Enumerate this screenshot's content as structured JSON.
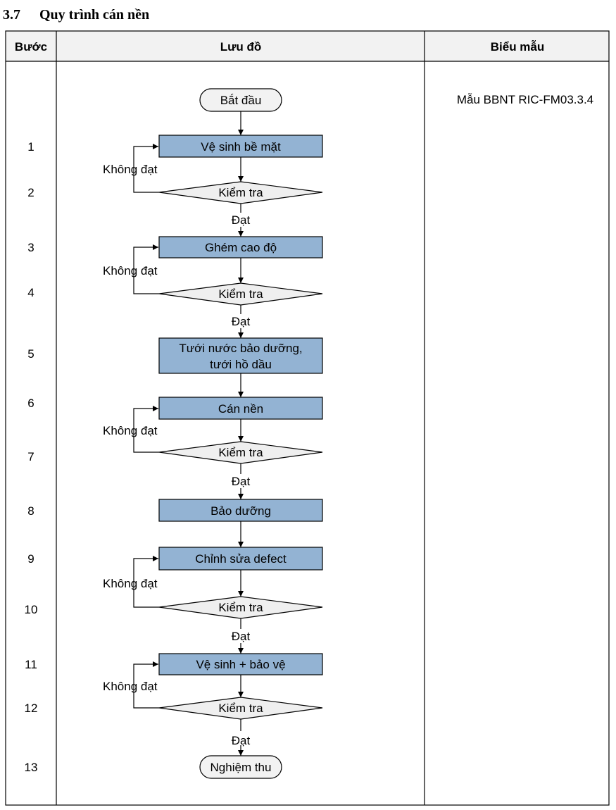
{
  "section": {
    "number": "3.7",
    "title": "Quy trình cán nền"
  },
  "table": {
    "headers": {
      "step": "Bước",
      "flow": "Lưu đồ",
      "form": "Biểu mẫu"
    },
    "form_entry": "Mẫu BBNT RIC-FM03.3.4"
  },
  "flowchart": {
    "start": "Bắt đầu",
    "end": "Nghiệm thu",
    "pass_label": "Đạt",
    "fail_label": "Không đạt",
    "colors": {
      "process_fill": "#93b3d3",
      "decision_fill": "#efefef",
      "terminal_fill": "#f2f2f2",
      "line": "#000000"
    },
    "steps": [
      {
        "number": "1",
        "text": "Vệ sinh bề mặt",
        "kind": "process"
      },
      {
        "number": "2",
        "text": "Kiểm tra",
        "kind": "decision"
      },
      {
        "number": "3",
        "text": "Ghém cao độ",
        "kind": "process"
      },
      {
        "number": "4",
        "text": "Kiểm tra",
        "kind": "decision"
      },
      {
        "number": "5",
        "text": "Tưới nước bảo dưỡng,",
        "text2": "tưới hồ dầu",
        "kind": "process"
      },
      {
        "number": "6",
        "text": "Cán nền",
        "kind": "process"
      },
      {
        "number": "7",
        "text": "Kiểm tra",
        "kind": "decision"
      },
      {
        "number": "8",
        "text": "Bảo dưỡng",
        "kind": "process"
      },
      {
        "number": "9",
        "text": "Chỉnh sửa defect",
        "kind": "process"
      },
      {
        "number": "10",
        "text": "Kiểm tra",
        "kind": "decision"
      },
      {
        "number": "11",
        "text": "Vệ sinh + bảo vệ",
        "kind": "process"
      },
      {
        "number": "12",
        "text": "Kiểm tra",
        "kind": "decision"
      },
      {
        "number": "13",
        "text": "Nghiệm thu",
        "kind": "terminal"
      }
    ]
  }
}
